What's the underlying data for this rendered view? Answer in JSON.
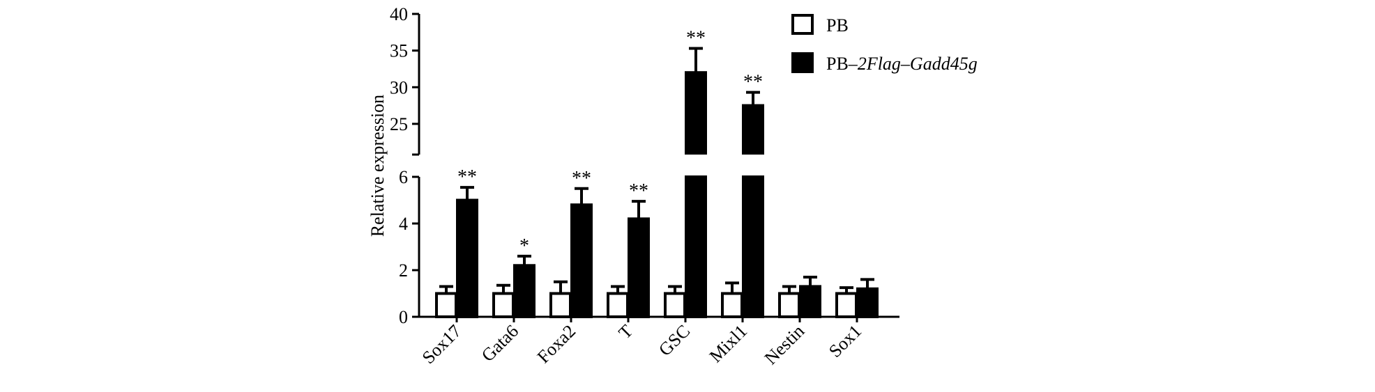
{
  "chart_data": {
    "type": "bar",
    "title": "",
    "xlabel": "",
    "ylabel": "Relative expression",
    "categories": [
      "Sox17",
      "Gata6",
      "Foxa2",
      "T",
      "GSC",
      "Mixl1",
      "Nestin",
      "Sox1"
    ],
    "series": [
      {
        "name": "PB",
        "fill": "#ffffff",
        "stroke": "#000000",
        "values": [
          1.0,
          1.0,
          1.0,
          1.0,
          1.0,
          1.0,
          1.0,
          1.0
        ],
        "errors": [
          0.3,
          0.35,
          0.5,
          0.3,
          0.3,
          0.45,
          0.3,
          0.25
        ]
      },
      {
        "name": "PB-2Flag-Gadd45g",
        "fill": "#000000",
        "stroke": "#000000",
        "values": [
          5.0,
          2.2,
          4.8,
          4.2,
          32.0,
          27.5,
          1.3,
          1.2
        ],
        "errors": [
          0.55,
          0.4,
          0.7,
          0.75,
          3.3,
          1.8,
          0.4,
          0.4
        ]
      }
    ],
    "significance": [
      "**",
      "*",
      "**",
      "**",
      "**",
      "**",
      "",
      ""
    ],
    "y_axis_break": {
      "lower_range": [
        0,
        6
      ],
      "upper_range": [
        21,
        40
      ],
      "lower_ticks": [
        "0",
        "2",
        "4",
        "6"
      ],
      "upper_ticks": [
        "25",
        "30",
        "35",
        "40"
      ]
    },
    "legend": {
      "placement": "top-right",
      "entries": [
        {
          "label_plain": "PB",
          "label_italic": ""
        },
        {
          "label_plain": "PB–",
          "label_italic": "2Flag–Gadd45g"
        }
      ]
    },
    "grid": false
  }
}
